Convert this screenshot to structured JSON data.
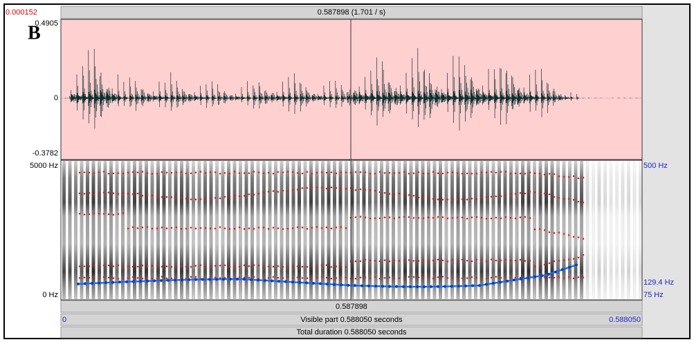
{
  "header": {
    "cursor_left": "0.000152",
    "cursor_time": "0.587898 (1.701 / s)"
  },
  "waveform": {
    "label": "B",
    "max": "0.4905",
    "zero": "0",
    "min": "-0.3782"
  },
  "spectrogram": {
    "top_freq": "5000 Hz",
    "bottom_freq": "0 Hz",
    "pitch_top": "500 Hz",
    "pitch_value": "129.4 Hz",
    "pitch_bottom": "75 Hz"
  },
  "footer": {
    "cursor": "0.587898",
    "start": "0",
    "visible": "Visible part 0.588050 seconds",
    "end": "0.588050",
    "total": "Total duration 0.588050 seconds"
  }
}
